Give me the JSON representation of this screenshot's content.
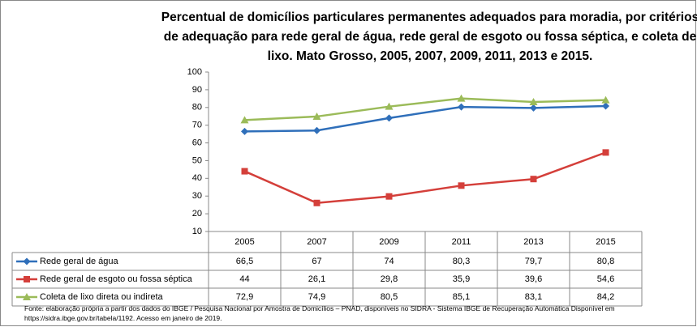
{
  "chart_data": {
    "type": "line",
    "title": "Percentual de domicílios particulares permanentes adequados para moradia, por critérios de adequação para rede geral de água, rede geral de esgoto ou fossa séptica, e coleta de lixo. Mato Grosso, 2005, 2007, 2009, 2011, 2013 e 2015.",
    "categories": [
      "2005",
      "2007",
      "2009",
      "2011",
      "2013",
      "2015"
    ],
    "series": [
      {
        "name": "Rede geral de água",
        "color": "#2f6fba",
        "marker": "diamond",
        "values": [
          66.5,
          67,
          74,
          80.3,
          79.7,
          80.8
        ],
        "value_labels": [
          "66,5",
          "67",
          "74",
          "80,3",
          "79,7",
          "80,8"
        ]
      },
      {
        "name": "Rede geral de esgoto ou fossa séptica",
        "color": "#d43f3a",
        "marker": "square",
        "values": [
          44,
          26.1,
          29.8,
          35.9,
          39.6,
          54.6
        ],
        "value_labels": [
          "44",
          "26,1",
          "29,8",
          "35,9",
          "39,6",
          "54,6"
        ]
      },
      {
        "name": "Coleta de lixo direta ou indireta",
        "color": "#9bbb59",
        "marker": "triangle",
        "values": [
          72.9,
          74.9,
          80.5,
          85.1,
          83.1,
          84.2
        ],
        "value_labels": [
          "72,9",
          "74,9",
          "80,5",
          "85,1",
          "83,1",
          "84,2"
        ]
      }
    ],
    "ylim": [
      10,
      100
    ],
    "yticks": [
      10,
      20,
      30,
      40,
      50,
      60,
      70,
      80,
      90,
      100
    ],
    "grid": false,
    "source": "Fonte: elaboração própria a partir dos dados do IBGE / Pesquisa Nacional por Amostra de Domicílios – PNAD, disponíveis no SIDRA - Sistema IBGE de Recuperação Automática Disponível em https://sidra.ibge.gov.br/tabela/1192. Acesso em janeiro de 2019."
  }
}
